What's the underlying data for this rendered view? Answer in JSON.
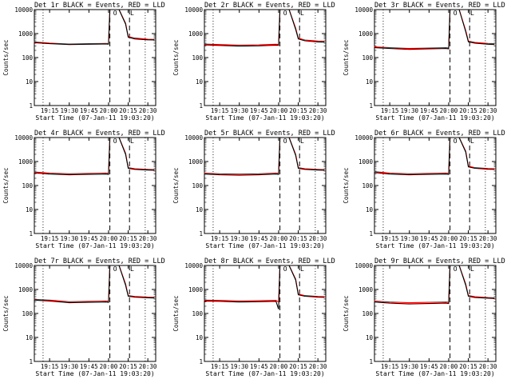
{
  "figure": {
    "xlabel": "Start Time (07-Jan-11 19:03:20)",
    "ylabel": "Counts/sec",
    "xticks": [
      "19:15",
      "19:30",
      "19:45",
      "20:00",
      "20:15",
      "20:30"
    ],
    "yticks": [
      "1",
      "10",
      "100",
      "1000",
      "10000"
    ],
    "marker_o": "O",
    "marker_l": "L",
    "colors": {
      "events": "#000000",
      "lld": "#ff0000",
      "background": "#ffffff"
    }
  },
  "chart_data": [
    {
      "type": "line",
      "title": "Det 1r BLACK = Events, RED = LLD",
      "xlabel": "Start Time (07-Jan-11 19:03:20)",
      "ylabel": "Counts/sec",
      "y_scale": "log",
      "ylim": [
        1,
        10000
      ],
      "series": [
        {
          "name": "Events",
          "color": "#000000",
          "x": [
            "19:03",
            "19:15",
            "19:30",
            "19:45",
            "19:58",
            "20:00",
            "20:01",
            "20:03",
            "20:08",
            "20:13",
            "20:15",
            "20:20",
            "20:30",
            "20:35"
          ],
          "y": [
            420,
            380,
            350,
            360,
            370,
            360,
            10000,
            10000,
            10000,
            2500,
            700,
            600,
            550,
            540
          ]
        },
        {
          "name": "LLD",
          "color": "#ff0000",
          "x": [
            "19:03",
            "19:15",
            "19:30",
            "19:45",
            "19:58",
            "20:00",
            "20:01",
            "20:03",
            "20:08",
            "20:13",
            "20:15",
            "20:20",
            "20:30",
            "20:35"
          ],
          "y": [
            450,
            400,
            370,
            380,
            390,
            380,
            10000,
            10000,
            10000,
            2700,
            760,
            650,
            580,
            570
          ]
        }
      ]
    },
    {
      "type": "line",
      "title": "Det 2r BLACK = Events, RED = LLD",
      "xlabel": "Start Time (07-Jan-11 19:03:20)",
      "ylabel": "Counts/sec",
      "y_scale": "log",
      "ylim": [
        1,
        10000
      ],
      "series": [
        {
          "name": "Events",
          "color": "#000000",
          "x": [
            "19:03",
            "19:15",
            "19:30",
            "19:45",
            "19:58",
            "20:00",
            "20:01",
            "20:03",
            "20:08",
            "20:13",
            "20:15",
            "20:20",
            "20:30",
            "20:35"
          ],
          "y": [
            340,
            320,
            300,
            310,
            330,
            320,
            10000,
            10000,
            10000,
            1500,
            600,
            500,
            450,
            440
          ]
        },
        {
          "name": "LLD",
          "color": "#ff0000",
          "x": [
            "19:03",
            "19:15",
            "19:30",
            "19:45",
            "19:58",
            "20:00",
            "20:01",
            "20:03",
            "20:08",
            "20:13",
            "20:15",
            "20:20",
            "20:30",
            "20:35"
          ],
          "y": [
            370,
            350,
            330,
            340,
            360,
            350,
            10000,
            10000,
            10000,
            1700,
            650,
            540,
            490,
            480
          ]
        }
      ]
    },
    {
      "type": "line",
      "title": "Det 3r BLACK = Events, RED = LLD",
      "xlabel": "Start Time (07-Jan-11 19:03:20)",
      "ylabel": "Counts/sec",
      "y_scale": "log",
      "ylim": [
        1,
        10000
      ],
      "series": [
        {
          "name": "Events",
          "color": "#000000",
          "x": [
            "19:03",
            "19:15",
            "19:30",
            "19:45",
            "19:58",
            "20:00",
            "20:01",
            "20:03",
            "20:08",
            "20:13",
            "20:15",
            "20:20",
            "20:30",
            "20:35"
          ],
          "y": [
            260,
            240,
            220,
            230,
            240,
            230,
            10000,
            10000,
            10000,
            1200,
            450,
            400,
            360,
            350
          ]
        },
        {
          "name": "LLD",
          "color": "#ff0000",
          "x": [
            "19:03",
            "19:15",
            "19:30",
            "19:45",
            "19:58",
            "20:00",
            "20:01",
            "20:03",
            "20:08",
            "20:13",
            "20:15",
            "20:20",
            "20:30",
            "20:35"
          ],
          "y": [
            280,
            260,
            240,
            250,
            260,
            250,
            10000,
            10000,
            10000,
            1350,
            490,
            430,
            390,
            380
          ]
        }
      ]
    },
    {
      "type": "line",
      "title": "Det 4r BLACK = Events, RED = LLD",
      "xlabel": "Start Time (07-Jan-11 19:03:20)",
      "ylabel": "Counts/sec",
      "y_scale": "log",
      "ylim": [
        1,
        10000
      ],
      "series": [
        {
          "name": "Events",
          "color": "#000000",
          "x": [
            "19:03",
            "19:15",
            "19:30",
            "19:45",
            "19:58",
            "20:00",
            "20:01",
            "20:03",
            "20:08",
            "20:13",
            "20:15",
            "20:20",
            "20:30",
            "20:35"
          ],
          "y": [
            340,
            300,
            280,
            290,
            300,
            290,
            10000,
            10000,
            10000,
            2000,
            520,
            470,
            440,
            430
          ]
        },
        {
          "name": "LLD",
          "color": "#ff0000",
          "x": [
            "19:03",
            "19:15",
            "19:30",
            "19:45",
            "19:58",
            "20:00",
            "20:01",
            "20:03",
            "20:08",
            "20:13",
            "20:15",
            "20:20",
            "20:30",
            "20:35"
          ],
          "y": [
            370,
            330,
            310,
            320,
            330,
            320,
            10000,
            10000,
            10000,
            2200,
            560,
            500,
            470,
            460
          ]
        }
      ]
    },
    {
      "type": "line",
      "title": "Det 5r BLACK = Events, RED = LLD",
      "xlabel": "Start Time (07-Jan-11 19:03:20)",
      "ylabel": "Counts/sec",
      "y_scale": "log",
      "ylim": [
        1,
        10000
      ],
      "series": [
        {
          "name": "Events",
          "color": "#000000",
          "x": [
            "19:03",
            "19:15",
            "19:30",
            "19:45",
            "19:58",
            "20:00",
            "20:01",
            "20:03",
            "20:08",
            "20:13",
            "20:15",
            "20:20",
            "20:30",
            "20:35"
          ],
          "y": [
            300,
            280,
            270,
            280,
            300,
            290,
            10000,
            10000,
            10000,
            1800,
            520,
            470,
            440,
            430
          ]
        },
        {
          "name": "LLD",
          "color": "#ff0000",
          "x": [
            "19:03",
            "19:15",
            "19:30",
            "19:45",
            "19:58",
            "20:00",
            "20:01",
            "20:03",
            "20:08",
            "20:13",
            "20:15",
            "20:20",
            "20:30",
            "20:35"
          ],
          "y": [
            330,
            310,
            300,
            310,
            330,
            320,
            10000,
            10000,
            10000,
            2000,
            560,
            500,
            470,
            460
          ]
        }
      ]
    },
    {
      "type": "line",
      "title": "Det 6r BLACK = Events, RED = LLD",
      "xlabel": "Start Time (07-Jan-11 19:03:20)",
      "ylabel": "Counts/sec",
      "y_scale": "log",
      "ylim": [
        1,
        10000
      ],
      "series": [
        {
          "name": "Events",
          "color": "#000000",
          "x": [
            "19:03",
            "19:15",
            "19:30",
            "19:45",
            "19:58",
            "20:00",
            "20:01",
            "20:03",
            "20:08",
            "20:13",
            "20:15",
            "20:20",
            "20:30",
            "20:35"
          ],
          "y": [
            350,
            300,
            280,
            290,
            300,
            290,
            10000,
            10000,
            10000,
            2500,
            600,
            520,
            480,
            470
          ]
        },
        {
          "name": "LLD",
          "color": "#ff0000",
          "x": [
            "19:03",
            "19:15",
            "19:30",
            "19:45",
            "19:58",
            "20:00",
            "20:01",
            "20:03",
            "20:08",
            "20:13",
            "20:15",
            "20:20",
            "20:30",
            "20:35"
          ],
          "y": [
            380,
            330,
            310,
            320,
            330,
            320,
            10000,
            10000,
            10000,
            2700,
            640,
            560,
            510,
            500
          ]
        }
      ]
    },
    {
      "type": "line",
      "title": "Det 7r BLACK = Events, RED = LLD",
      "xlabel": "Start Time (07-Jan-11 19:03:20)",
      "ylabel": "Counts/sec",
      "y_scale": "log",
      "ylim": [
        1,
        10000
      ],
      "series": [
        {
          "name": "Events",
          "color": "#000000",
          "x": [
            "19:03",
            "19:15",
            "19:30",
            "19:45",
            "19:58",
            "20:00",
            "20:01",
            "20:03",
            "20:08",
            "20:13",
            "20:15",
            "20:20",
            "20:30",
            "20:35"
          ],
          "y": [
            360,
            330,
            280,
            290,
            300,
            290,
            10000,
            10000,
            10000,
            1500,
            520,
            480,
            450,
            440
          ]
        },
        {
          "name": "LLD",
          "color": "#ff0000",
          "x": [
            "19:03",
            "19:15",
            "19:30",
            "19:45",
            "19:58",
            "20:00",
            "20:01",
            "20:03",
            "20:08",
            "20:13",
            "20:15",
            "20:20",
            "20:30",
            "20:35"
          ],
          "y": [
            390,
            360,
            310,
            320,
            330,
            320,
            10000,
            10000,
            10000,
            1700,
            560,
            510,
            480,
            470
          ]
        }
      ]
    },
    {
      "type": "line",
      "title": "Det 8r BLACK = Events, RED = LLD",
      "xlabel": "Start Time (07-Jan-11 19:03:20)",
      "ylabel": "Counts/sec",
      "y_scale": "log",
      "ylim": [
        1,
        10000
      ],
      "series": [
        {
          "name": "Events",
          "color": "#000000",
          "x": [
            "19:03",
            "19:15",
            "19:30",
            "19:45",
            "19:58",
            "20:00",
            "20:01",
            "20:03",
            "20:08",
            "20:13",
            "20:15",
            "20:20",
            "20:30",
            "20:35"
          ],
          "y": [
            330,
            320,
            300,
            310,
            320,
            150,
            10000,
            10000,
            10000,
            2500,
            600,
            520,
            480,
            470
          ]
        },
        {
          "name": "LLD",
          "color": "#ff0000",
          "x": [
            "19:03",
            "19:15",
            "19:30",
            "19:45",
            "19:58",
            "20:00",
            "20:01",
            "20:03",
            "20:08",
            "20:13",
            "20:15",
            "20:20",
            "20:30",
            "20:35"
          ],
          "y": [
            360,
            350,
            330,
            340,
            350,
            300,
            10000,
            10000,
            10000,
            2700,
            640,
            560,
            510,
            500
          ]
        }
      ]
    },
    {
      "type": "line",
      "title": "Det 9r BLACK = Events, RED = LLD",
      "xlabel": "Start Time (07-Jan-11 19:03:20)",
      "ylabel": "Counts/sec",
      "y_scale": "log",
      "ylim": [
        1,
        10000
      ],
      "series": [
        {
          "name": "Events",
          "color": "#000000",
          "x": [
            "19:03",
            "19:15",
            "19:30",
            "19:45",
            "19:58",
            "20:00",
            "20:01",
            "20:03",
            "20:08",
            "20:13",
            "20:15",
            "20:20",
            "20:30",
            "20:35"
          ],
          "y": [
            300,
            270,
            250,
            260,
            270,
            260,
            10000,
            10000,
            10000,
            1500,
            520,
            460,
            430,
            420
          ]
        },
        {
          "name": "LLD",
          "color": "#ff0000",
          "x": [
            "19:03",
            "19:15",
            "19:30",
            "19:45",
            "19:58",
            "20:00",
            "20:01",
            "20:03",
            "20:08",
            "20:13",
            "20:15",
            "20:20",
            "20:30",
            "20:35"
          ],
          "y": [
            330,
            300,
            280,
            290,
            300,
            290,
            10000,
            10000,
            10000,
            1700,
            560,
            500,
            460,
            450
          ]
        }
      ]
    }
  ]
}
